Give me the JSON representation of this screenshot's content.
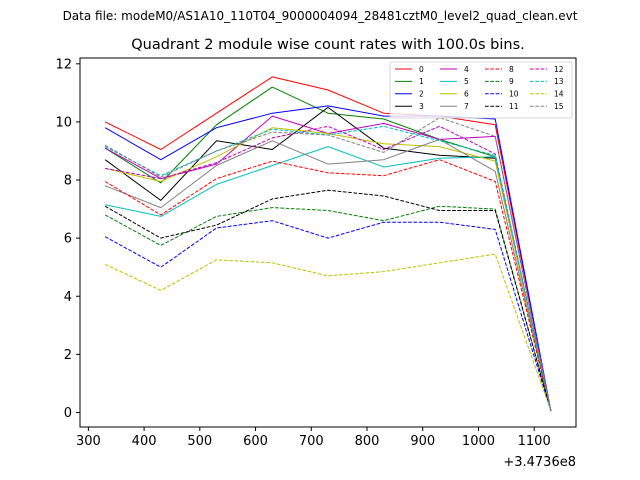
{
  "chart_data": {
    "type": "line",
    "suptitle": "Data file: modeM0/AS1A10_110T04_9000004094_28481cztM0_level2_quad_clean.evt",
    "title": "Quadrant 2 module wise count rates with 100.0s bins.",
    "xlabel": "",
    "ylabel": "",
    "x_offset_label": "+3.4736e8",
    "x": [
      330,
      430,
      530,
      630,
      730,
      830,
      930,
      1030,
      1130
    ],
    "xlim": [
      285,
      1175
    ],
    "ylim": [
      -0.5,
      12.2
    ],
    "xticks": [
      300,
      400,
      500,
      600,
      700,
      800,
      900,
      1000,
      1100
    ],
    "xtick_labels": [
      "300",
      "400",
      "500",
      "600",
      "700",
      "800",
      "900",
      "1000",
      "1100"
    ],
    "yticks": [
      0,
      2,
      4,
      6,
      8,
      10,
      12
    ],
    "ytick_labels": [
      "0",
      "2",
      "4",
      "6",
      "8",
      "10",
      "12"
    ],
    "legend_location": "top-right",
    "legend_columns": 4,
    "series": [
      {
        "name": "0",
        "color": "#ff0000",
        "dash": "solid",
        "values": [
          10.0,
          9.05,
          10.3,
          11.55,
          11.1,
          10.3,
          10.2,
          9.9,
          0.05
        ]
      },
      {
        "name": "1",
        "color": "#008000",
        "dash": "solid",
        "values": [
          9.1,
          7.9,
          9.9,
          11.2,
          10.3,
          10.1,
          9.4,
          8.8,
          0.05
        ]
      },
      {
        "name": "2",
        "color": "#0000ff",
        "dash": "solid",
        "values": [
          9.8,
          8.7,
          9.8,
          10.3,
          10.55,
          10.2,
          10.2,
          10.1,
          0.05
        ]
      },
      {
        "name": "3",
        "color": "#000000",
        "dash": "solid",
        "values": [
          8.7,
          7.3,
          9.35,
          9.05,
          10.5,
          9.1,
          8.85,
          8.75,
          0.05
        ]
      },
      {
        "name": "4",
        "color": "#bf00bf",
        "dash": "solid",
        "values": [
          9.1,
          8.05,
          8.55,
          10.2,
          9.6,
          9.95,
          9.4,
          9.5,
          0.05
        ]
      },
      {
        "name": "5",
        "color": "#00bfbf",
        "dash": "solid",
        "values": [
          7.15,
          6.75,
          7.85,
          8.5,
          9.15,
          8.45,
          8.75,
          8.8,
          0.05
        ]
      },
      {
        "name": "6",
        "color": "#bfbf00",
        "dash": "solid",
        "values": [
          8.4,
          7.95,
          8.8,
          9.8,
          9.6,
          9.25,
          9.15,
          8.65,
          0.05
        ]
      },
      {
        "name": "7",
        "color": "#808080",
        "dash": "solid",
        "values": [
          7.8,
          7.05,
          8.5,
          9.35,
          8.55,
          8.7,
          9.4,
          8.3,
          0.05
        ]
      },
      {
        "name": "8",
        "color": "#ff0000",
        "dash": "dashed",
        "values": [
          7.95,
          6.8,
          8.05,
          8.65,
          8.25,
          8.15,
          8.7,
          7.95,
          0.05
        ]
      },
      {
        "name": "9",
        "color": "#008000",
        "dash": "dashed",
        "values": [
          6.8,
          5.75,
          6.75,
          7.05,
          6.95,
          6.6,
          7.1,
          7.0,
          0.05
        ]
      },
      {
        "name": "10",
        "color": "#0000ff",
        "dash": "dashed",
        "values": [
          6.05,
          5.0,
          6.35,
          6.6,
          6.0,
          6.55,
          6.55,
          6.3,
          0.05
        ]
      },
      {
        "name": "11",
        "color": "#000000",
        "dash": "dashed",
        "values": [
          7.1,
          6.0,
          6.45,
          7.35,
          7.65,
          7.45,
          6.95,
          6.95,
          0.05
        ]
      },
      {
        "name": "12",
        "color": "#bf00bf",
        "dash": "dashed",
        "values": [
          8.4,
          8.05,
          8.6,
          9.45,
          9.85,
          9.05,
          9.85,
          8.9,
          0.05
        ]
      },
      {
        "name": "13",
        "color": "#00bfbf",
        "dash": "dashed",
        "values": [
          9.15,
          8.15,
          9.0,
          9.75,
          9.55,
          9.85,
          9.35,
          8.85,
          0.05
        ]
      },
      {
        "name": "14",
        "color": "#bfbf00",
        "dash": "dashed",
        "values": [
          5.1,
          4.2,
          5.25,
          5.15,
          4.7,
          4.85,
          5.15,
          5.45,
          0.05
        ]
      },
      {
        "name": "15",
        "color": "#808080",
        "dash": "dashed",
        "values": [
          9.2,
          8.1,
          9.0,
          9.65,
          9.55,
          8.95,
          10.15,
          9.5,
          0.05
        ]
      }
    ]
  }
}
